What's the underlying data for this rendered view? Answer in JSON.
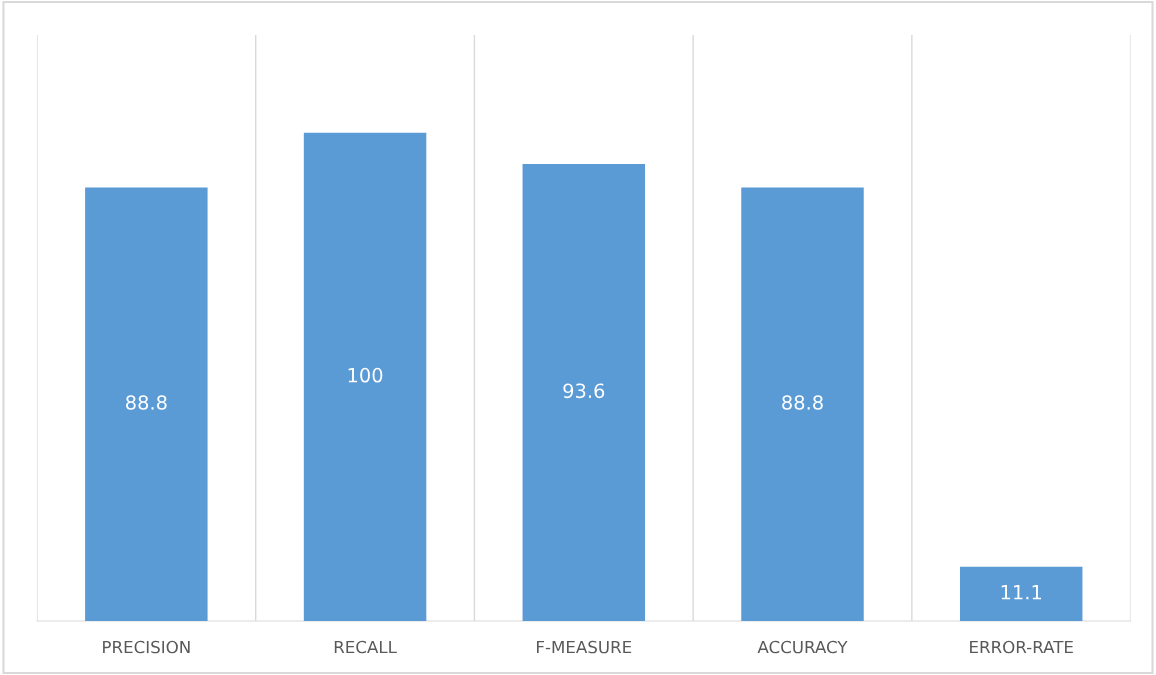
{
  "chart_data": {
    "type": "bar",
    "categories": [
      "PRECISION",
      "RECALL",
      "F-MEASURE",
      "ACCURACY",
      "ERROR-RATE"
    ],
    "values": [
      88.8,
      100,
      93.6,
      88.8,
      11.1
    ],
    "color": "#5b9bd5",
    "ylim": [
      0,
      120
    ],
    "data_labels": true,
    "grid": "x",
    "tick_labels": "x",
    "legend": false
  }
}
